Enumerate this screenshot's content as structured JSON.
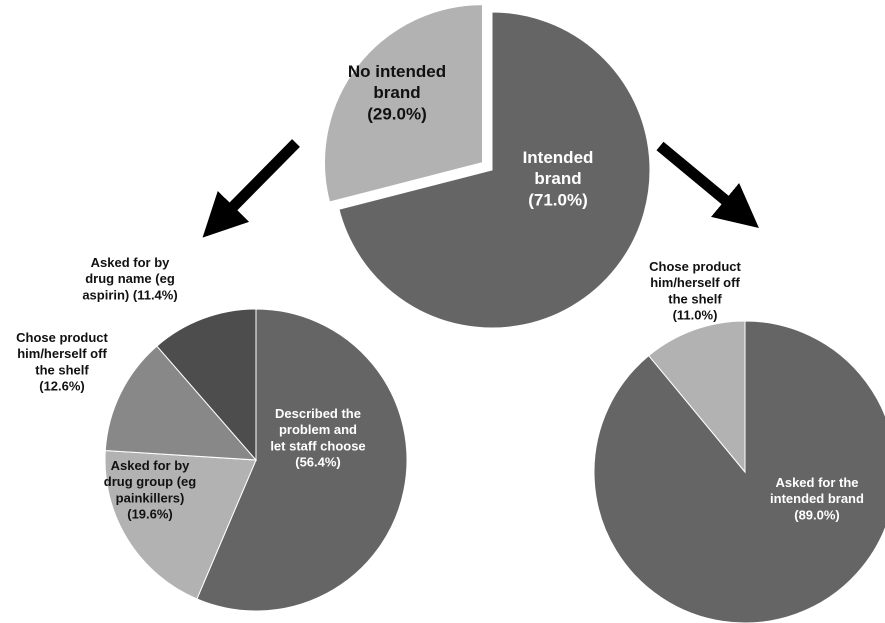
{
  "chart_data": [
    {
      "type": "pie",
      "slices": [
        {
          "label_lines": [
            "Intended",
            "brand",
            "(71.0%)"
          ],
          "value": 71.0,
          "color": "#656565",
          "label_color": "#ffffff"
        },
        {
          "label_lines": [
            "No intended",
            "brand",
            "(29.0%)"
          ],
          "value": 29.0,
          "color": "#b2b2b2",
          "label_color": "#111111",
          "exploded": true
        }
      ]
    },
    {
      "type": "pie",
      "slices": [
        {
          "label_lines": [
            "Described the",
            "problem and",
            "let staff choose",
            "(56.4%)"
          ],
          "value": 56.4,
          "color": "#656565",
          "label_color": "#ffffff"
        },
        {
          "label_lines": [
            "Asked for by",
            "drug group (eg",
            "painkillers)",
            "(19.6%)"
          ],
          "value": 19.6,
          "color": "#b2b2b2",
          "label_color": "#111111"
        },
        {
          "label_lines": [
            "Chose product",
            "him/herself off",
            "the shelf",
            "(12.6%)"
          ],
          "value": 12.6,
          "color": "#888888",
          "label_color": "#111111"
        },
        {
          "label_lines": [
            "Asked for by",
            "drug name (eg",
            "aspirin) (11.4%)"
          ],
          "value": 11.4,
          "color": "#4d4d4d",
          "label_color": "#111111"
        }
      ]
    },
    {
      "type": "pie",
      "slices": [
        {
          "label_lines": [
            "Asked for the",
            "intended brand",
            "(89.0%)"
          ],
          "value": 89.0,
          "color": "#656565",
          "label_color": "#ffffff"
        },
        {
          "label_lines": [
            "Chose product",
            "him/herself off",
            "the shelf",
            "(11.0%)"
          ],
          "value": 11.0,
          "color": "#b2b2b2",
          "label_color": "#111111"
        }
      ]
    }
  ],
  "arrows": [
    {
      "name": "left-arrow",
      "points_to": "bottom-left"
    },
    {
      "name": "right-arrow",
      "points_to": "bottom-right"
    }
  ]
}
